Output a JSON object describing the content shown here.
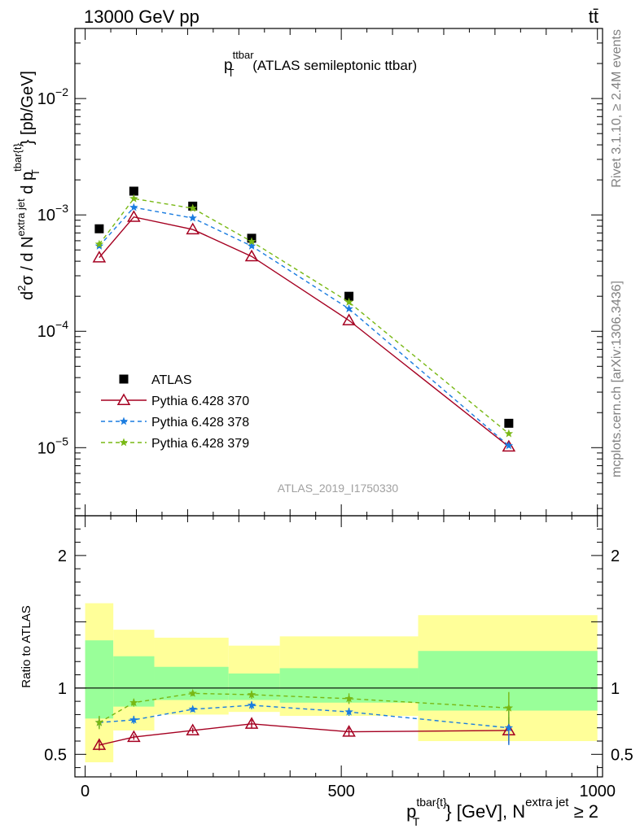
{
  "header": {
    "energy_label": "13000 GeV pp",
    "process_label": "tt̄"
  },
  "side_labels": {
    "rivet": "Rivet 3.1.10, ≥ 2.4M events",
    "mcplots": "mcplots.cern.ch [arXiv:1306.3436]"
  },
  "chart_data": [
    {
      "type": "scatter",
      "panel": "main",
      "title": {
        "main": "p",
        "sub": "T",
        "sup": "ttbar",
        "rest": " (ATLAS semileptonic ttbar)"
      },
      "watermark": "ATLAS_2019_I1750330",
      "ylabel": "d²σ / d N^{extra jet} d p_T^{tbar{t}} [pb/GeV]",
      "yscale": "log",
      "xlim": [
        -20,
        1010
      ],
      "ylim": [
        2.6e-06,
        0.04
      ],
      "y_ticks": [
        {
          "value": 1e-05,
          "base": "10",
          "exp": "−5"
        },
        {
          "value": 0.0001,
          "base": "10",
          "exp": "−4"
        },
        {
          "value": 0.001,
          "base": "10",
          "exp": "−3"
        },
        {
          "value": 0.01,
          "base": "10",
          "exp": "−2"
        }
      ],
      "legend_position": "lower-left",
      "series": [
        {
          "name": "ATLAS",
          "style": "data",
          "color": "#000000",
          "x": [
            27.5,
            95,
            210,
            325,
            515,
            827
          ],
          "y": [
            0.00076,
            0.0016,
            0.00119,
            0.00063,
            0.0002,
            1.62e-05
          ]
        },
        {
          "name": "Pythia 6.428 370",
          "style": "solid-triangle",
          "color": "#a50021",
          "x": [
            27.5,
            95,
            210,
            325,
            515,
            827
          ],
          "y": [
            0.00043,
            0.00096,
            0.00075,
            0.00044,
            0.000124,
            1.02e-05
          ]
        },
        {
          "name": "Pythia 6.428 378",
          "style": "dashed-star",
          "color": "#1a7ce0",
          "x": [
            27.5,
            95,
            210,
            325,
            515,
            827
          ],
          "y": [
            0.00054,
            0.00116,
            0.00094,
            0.00054,
            0.000156,
            1.04e-05
          ]
        },
        {
          "name": "Pythia 6.428 379",
          "style": "dashed-star",
          "color": "#78b814",
          "x": [
            27.5,
            95,
            210,
            325,
            515,
            827
          ],
          "y": [
            0.00056,
            0.00138,
            0.00114,
            0.00059,
            0.000178,
            1.32e-05
          ]
        }
      ]
    },
    {
      "type": "line",
      "panel": "ratio",
      "ylabel": "Ratio to ATLAS",
      "xlabel": {
        "p": "p",
        "sub": "T",
        "sup": "tbar{t}",
        "unit": "} [GeV], N",
        "sup2": "extra jet",
        "tail": " ≥ 2"
      },
      "xlim": [
        -20,
        1010
      ],
      "ylim": [
        0.33,
        2.3
      ],
      "x_ticks": [
        0,
        500,
        1000
      ],
      "y_ticks": [
        0.5,
        1,
        2
      ],
      "bins": [
        {
          "lo": 0,
          "hi": 55,
          "yellow": [
            0.44,
            1.64
          ],
          "green": [
            0.77,
            1.36
          ]
        },
        {
          "lo": 55,
          "hi": 135,
          "yellow": [
            0.68,
            1.44
          ],
          "green": [
            0.86,
            1.24
          ]
        },
        {
          "lo": 135,
          "hi": 280,
          "yellow": [
            0.8,
            1.38
          ],
          "green": [
            0.91,
            1.16
          ]
        },
        {
          "lo": 280,
          "hi": 380,
          "yellow": [
            0.82,
            1.32
          ],
          "green": [
            0.91,
            1.11
          ]
        },
        {
          "lo": 380,
          "hi": 650,
          "yellow": [
            0.79,
            1.39
          ],
          "green": [
            0.89,
            1.15
          ]
        },
        {
          "lo": 650,
          "hi": 1000,
          "yellow": [
            0.6,
            1.55
          ],
          "green": [
            0.83,
            1.28
          ]
        }
      ],
      "series": [
        {
          "name": "Pythia 6.428 370",
          "color": "#a50021",
          "dashed": false,
          "marker": "triangle",
          "x": [
            27.5,
            95,
            210,
            325,
            515,
            827
          ],
          "y": [
            0.57,
            0.63,
            0.68,
            0.73,
            0.67,
            0.68
          ],
          "err": [
            0.04,
            0.02,
            0.02,
            0.03,
            0.03,
            0.1
          ]
        },
        {
          "name": "Pythia 6.428 378",
          "color": "#1a7ce0",
          "dashed": true,
          "marker": "star",
          "x": [
            27.5,
            95,
            210,
            325,
            515,
            827
          ],
          "y": [
            0.74,
            0.76,
            0.84,
            0.87,
            0.82,
            0.7
          ],
          "err": [
            0.04,
            0.03,
            0.02,
            0.03,
            0.03,
            0.13
          ]
        },
        {
          "name": "Pythia 6.428 379",
          "color": "#78b814",
          "dashed": true,
          "marker": "star",
          "x": [
            27.5,
            95,
            210,
            325,
            515,
            827
          ],
          "y": [
            0.74,
            0.89,
            0.96,
            0.95,
            0.92,
            0.85
          ],
          "err": [
            0.05,
            0.03,
            0.02,
            0.03,
            0.04,
            0.12
          ]
        }
      ]
    }
  ]
}
